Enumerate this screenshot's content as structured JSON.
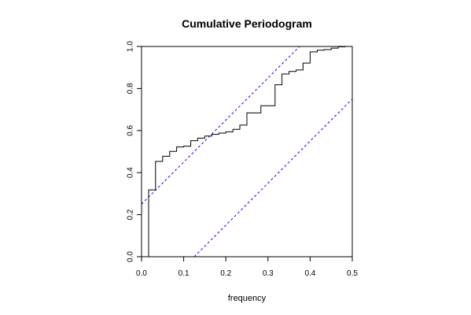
{
  "chart_data": {
    "type": "line",
    "title": "Cumulative Periodogram",
    "xlabel": "frequency",
    "ylabel": "",
    "xlim": [
      0,
      0.5
    ],
    "ylim": [
      0,
      1
    ],
    "grid": false,
    "x_ticks": [
      "0.0",
      "0.1",
      "0.2",
      "0.3",
      "0.4",
      "0.5"
    ],
    "y_ticks": [
      "0.0",
      "0.2",
      "0.4",
      "0.6",
      "0.8",
      "1.0"
    ],
    "step_series": {
      "color": "#000000",
      "points": [
        [
          0.0167,
          0.0
        ],
        [
          0.0167,
          0.318
        ],
        [
          0.0333,
          0.318
        ],
        [
          0.0333,
          0.453
        ],
        [
          0.05,
          0.453
        ],
        [
          0.05,
          0.478
        ],
        [
          0.0667,
          0.478
        ],
        [
          0.0667,
          0.501
        ],
        [
          0.0833,
          0.501
        ],
        [
          0.0833,
          0.522
        ],
        [
          0.1,
          0.522
        ],
        [
          0.1,
          0.526
        ],
        [
          0.1167,
          0.526
        ],
        [
          0.1167,
          0.552
        ],
        [
          0.1333,
          0.552
        ],
        [
          0.1333,
          0.564
        ],
        [
          0.15,
          0.564
        ],
        [
          0.15,
          0.574
        ],
        [
          0.1667,
          0.574
        ],
        [
          0.1667,
          0.582
        ],
        [
          0.1833,
          0.582
        ],
        [
          0.1833,
          0.588
        ],
        [
          0.2,
          0.588
        ],
        [
          0.2,
          0.594
        ],
        [
          0.2167,
          0.594
        ],
        [
          0.2167,
          0.606
        ],
        [
          0.2333,
          0.606
        ],
        [
          0.2333,
          0.626
        ],
        [
          0.25,
          0.626
        ],
        [
          0.25,
          0.684
        ],
        [
          0.2667,
          0.684
        ],
        [
          0.2833,
          0.684
        ],
        [
          0.2833,
          0.718
        ],
        [
          0.3,
          0.718
        ],
        [
          0.3167,
          0.718
        ],
        [
          0.3167,
          0.818
        ],
        [
          0.3333,
          0.818
        ],
        [
          0.3333,
          0.869
        ],
        [
          0.35,
          0.869
        ],
        [
          0.35,
          0.881
        ],
        [
          0.3667,
          0.881
        ],
        [
          0.3667,
          0.888
        ],
        [
          0.3833,
          0.888
        ],
        [
          0.3833,
          0.921
        ],
        [
          0.4,
          0.921
        ],
        [
          0.4,
          0.974
        ],
        [
          0.4167,
          0.974
        ],
        [
          0.4167,
          0.982
        ],
        [
          0.4333,
          0.982
        ],
        [
          0.4333,
          0.985
        ],
        [
          0.45,
          0.985
        ],
        [
          0.45,
          0.992
        ],
        [
          0.4667,
          0.992
        ],
        [
          0.4667,
          0.998
        ],
        [
          0.4833,
          0.998
        ],
        [
          0.4833,
          1.0
        ],
        [
          0.5,
          1.0
        ]
      ]
    },
    "bounds": {
      "color": "#0000ff",
      "style": "dashed",
      "lines": [
        {
          "x": [
            0.0,
            0.375
          ],
          "y": [
            0.25,
            1.0
          ]
        },
        {
          "x": [
            0.125,
            0.5
          ],
          "y": [
            0.0,
            0.75
          ]
        }
      ]
    }
  }
}
